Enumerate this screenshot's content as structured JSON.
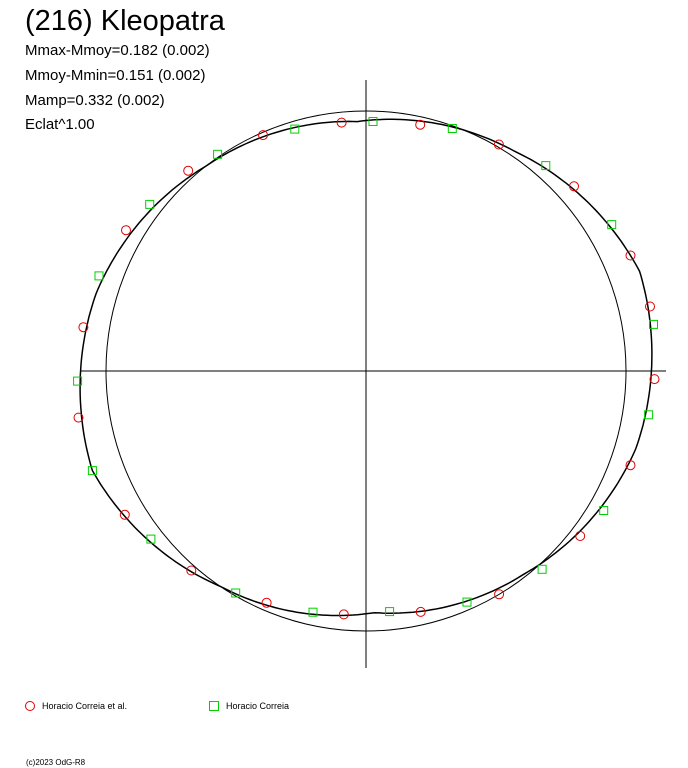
{
  "header": {
    "title": "(216) Kleopatra",
    "stats": [
      "Mmax-Mmoy=0.182 (0.002)",
      "Mmoy-Mmin=0.151 (0.002)",
      "Mamp=0.332 (0.002)",
      "Eclat^1.00"
    ]
  },
  "chart_data": {
    "type": "scatter",
    "coordinate_system": "polar (rotational phase)",
    "grid": false,
    "reference_circle": true,
    "axes": "crosshair through center",
    "curve": {
      "description": "fitted lightcurve in polar form",
      "x": [
        0.0,
        0.1,
        0.2,
        0.3,
        0.4,
        0.5,
        0.6,
        0.7,
        0.8,
        0.9,
        1.0
      ],
      "y": [
        1.12,
        1.02,
        0.96,
        1.0,
        1.08,
        1.12,
        1.0,
        0.93,
        0.99,
        1.08,
        1.12
      ]
    },
    "series": [
      {
        "name": "Horacio Correia et al.",
        "marker": "circle",
        "color": "#e00000",
        "x": [
          0.01,
          0.06,
          0.11,
          0.16,
          0.21,
          0.26,
          0.31,
          0.36,
          0.42,
          0.47,
          0.53,
          0.58,
          0.63,
          0.68,
          0.73,
          0.78,
          0.84,
          0.89,
          0.94,
          0.98
        ],
        "y": [
          1.11,
          1.07,
          1.01,
          0.97,
          0.96,
          0.99,
          1.03,
          1.07,
          1.1,
          1.12,
          1.08,
          1.02,
          0.97,
          0.94,
          0.95,
          1.0,
          1.04,
          1.08,
          1.11,
          1.12
        ]
      },
      {
        "name": "Horacio Correia",
        "marker": "square",
        "color": "#00d000",
        "x": [
          0.03,
          0.08,
          0.14,
          0.19,
          0.24,
          0.29,
          0.34,
          0.39,
          0.45,
          0.5,
          0.55,
          0.61,
          0.66,
          0.71,
          0.76,
          0.81,
          0.86,
          0.92,
          0.97
        ],
        "y": [
          1.1,
          1.05,
          0.99,
          0.96,
          0.97,
          1.01,
          1.05,
          1.09,
          1.11,
          1.12,
          1.05,
          0.99,
          0.95,
          0.93,
          0.97,
          1.02,
          1.06,
          1.1,
          1.12
        ]
      }
    ]
  },
  "legend": [
    {
      "label": "Horacio Correia et al.",
      "marker": "circle",
      "color": "#e00000"
    },
    {
      "label": "Horacio Correia",
      "marker": "square",
      "color": "#00d000"
    }
  ],
  "footer": {
    "copyright": "(c)2023 OdG-R8"
  }
}
